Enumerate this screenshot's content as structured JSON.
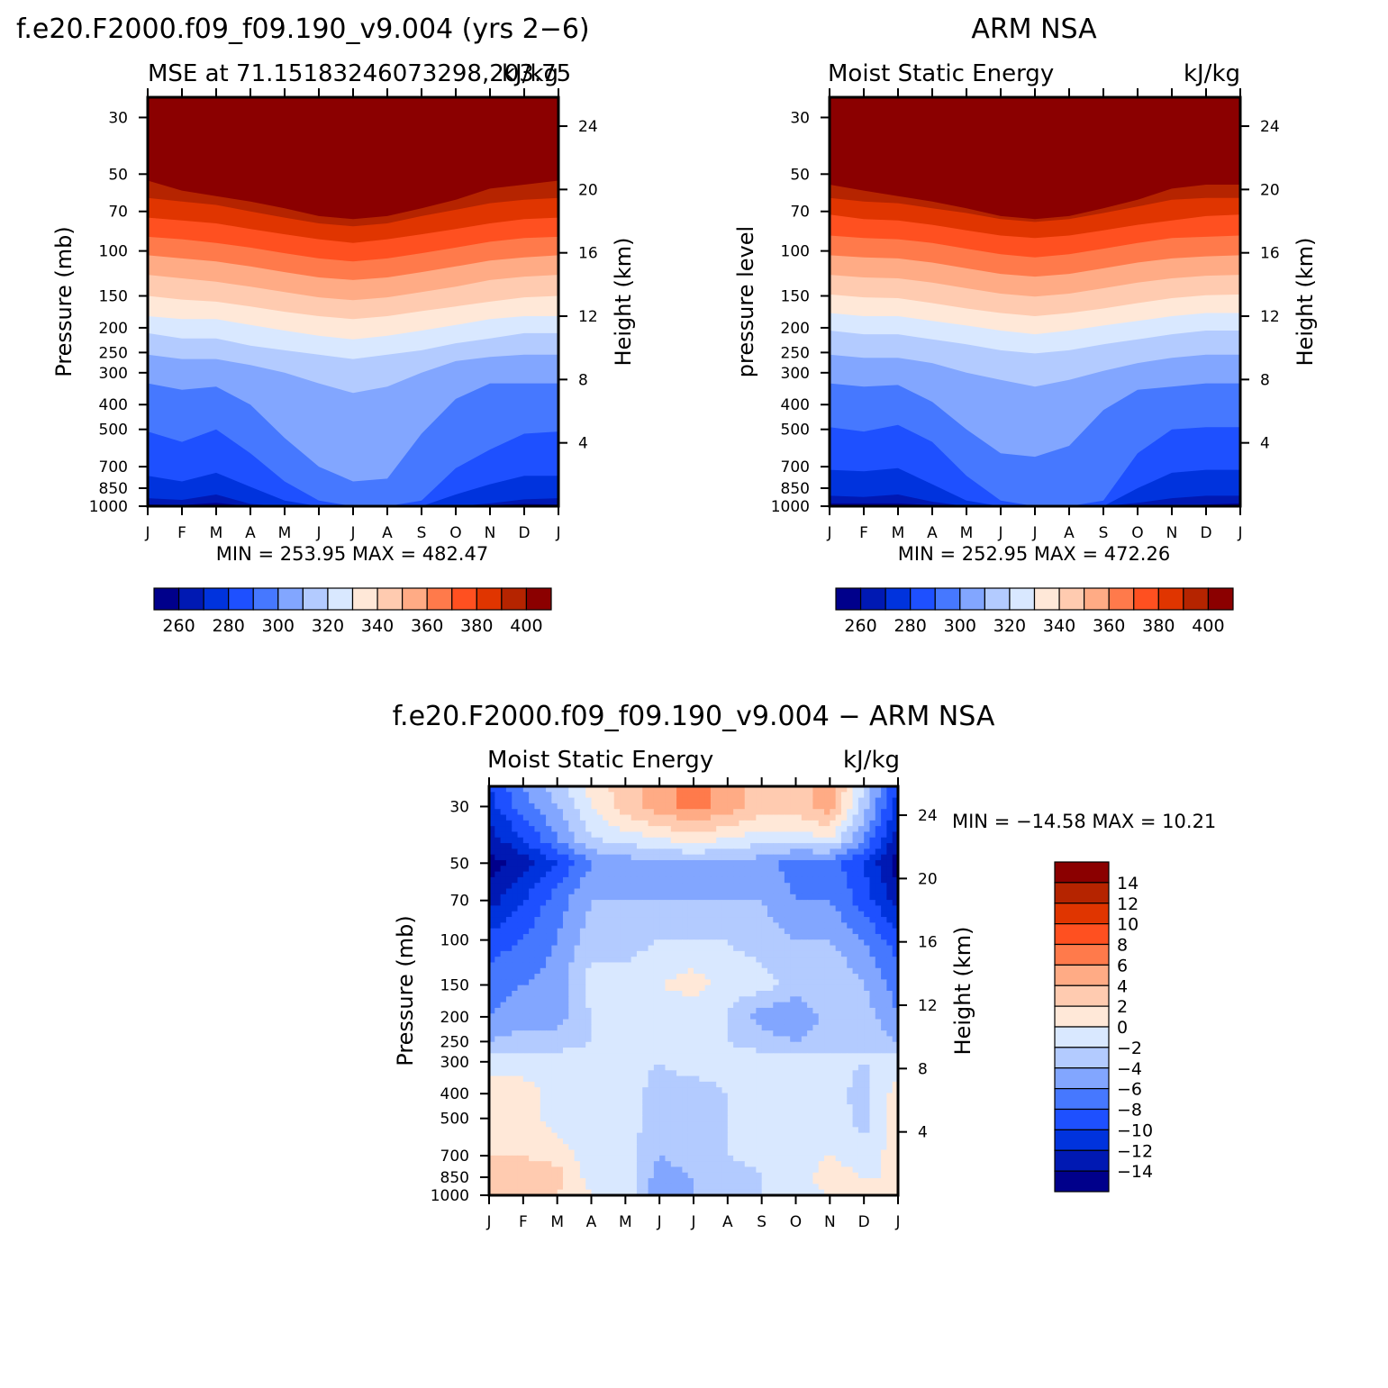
{
  "figure": {
    "panels": [
      {
        "id": "model",
        "suptitle": "f.e20.F2000.f09_f09.190_v9.004 (yrs 2−6)",
        "left_title": "MSE at 71.15183246073298,203.75",
        "right_title": "kJ/kg",
        "ylabel": "Pressure (mb)",
        "ylabel_right": "Height (km)",
        "stats": "MIN = 253.95 MAX = 482.47"
      },
      {
        "id": "obs",
        "suptitle": "ARM NSA",
        "left_title": "Moist Static Energy",
        "right_title": "kJ/kg",
        "ylabel": "pressure level",
        "ylabel_right": "Height (km)",
        "stats": "MIN = 252.95 MAX = 472.26"
      },
      {
        "id": "diff",
        "suptitle": "f.e20.F2000.f09_f09.190_v9.004 − ARM NSA",
        "left_title": "Moist Static Energy",
        "right_title": "kJ/kg",
        "ylabel": "Pressure (mb)",
        "ylabel_right": "Height (km)",
        "stats": "MIN = −14.58 MAX =  10.21"
      }
    ]
  },
  "chart_data": [
    {
      "type": "heatmap",
      "title": "f.e20.F2000.f09_f09.190_v9.004 (yrs 2−6)",
      "subtitle": "MSE at 71.15183246073298,203.75",
      "units": "kJ/kg",
      "xlabel": "",
      "ylabel": "Pressure (mb)",
      "ylabel_right": "Height (km)",
      "x_ticks": [
        "J",
        "F",
        "M",
        "A",
        "M",
        "J",
        "J",
        "A",
        "S",
        "O",
        "N",
        "D",
        "J"
      ],
      "y_ticks": [
        30,
        50,
        70,
        100,
        150,
        200,
        250,
        300,
        400,
        500,
        700,
        850,
        1000
      ],
      "right_ticks": [
        24,
        20,
        16,
        12,
        8,
        4
      ],
      "ylim": [
        1000,
        25
      ],
      "min": 253.95,
      "max": 482.47,
      "levels": [
        250,
        260,
        270,
        280,
        290,
        300,
        310,
        320,
        330,
        340,
        350,
        360,
        370,
        380,
        390,
        400,
        410
      ],
      "colorbar_ticks": [
        260,
        280,
        300,
        320,
        340,
        360,
        380,
        400
      ],
      "contours": [
        {
          "value": 260,
          "p": [
            985,
            990,
            970,
            1000,
            1000,
            1000,
            1000,
            1000,
            1000,
            1000,
            990,
            980,
            985
          ]
        },
        {
          "value": 270,
          "p": [
            930,
            945,
            900,
            980,
            1000,
            1000,
            1000,
            1000,
            1000,
            1000,
            975,
            940,
            930
          ]
        },
        {
          "value": 280,
          "p": [
            760,
            800,
            740,
            840,
            950,
            1000,
            1000,
            1000,
            1000,
            900,
            820,
            760,
            760
          ]
        },
        {
          "value": 290,
          "p": [
            510,
            560,
            500,
            620,
            800,
            950,
            1000,
            1000,
            950,
            710,
            600,
            520,
            510
          ]
        },
        {
          "value": 300,
          "p": [
            330,
            350,
            340,
            400,
            540,
            700,
            800,
            780,
            520,
            380,
            330,
            330,
            330
          ]
        },
        {
          "value": 310,
          "p": [
            255,
            265,
            265,
            280,
            300,
            330,
            360,
            340,
            300,
            270,
            260,
            255,
            255
          ]
        },
        {
          "value": 320,
          "p": [
            210,
            220,
            220,
            235,
            245,
            255,
            265,
            255,
            245,
            230,
            220,
            210,
            210
          ]
        },
        {
          "value": 330,
          "p": [
            180,
            185,
            185,
            195,
            205,
            215,
            222,
            215,
            205,
            195,
            185,
            180,
            180
          ]
        },
        {
          "value": 340,
          "p": [
            150,
            155,
            158,
            165,
            173,
            180,
            185,
            180,
            172,
            165,
            158,
            152,
            150
          ]
        },
        {
          "value": 350,
          "p": [
            124,
            128,
            132,
            138,
            145,
            152,
            156,
            152,
            145,
            138,
            130,
            126,
            124
          ]
        },
        {
          "value": 360,
          "p": [
            104,
            107,
            110,
            115,
            121,
            127,
            130,
            127,
            121,
            115,
            109,
            106,
            104
          ]
        },
        {
          "value": 370,
          "p": [
            88,
            90,
            93,
            97,
            102,
            107,
            110,
            107,
            102,
            97,
            92,
            89,
            88
          ]
        },
        {
          "value": 380,
          "p": [
            74,
            76,
            78,
            82,
            86,
            90,
            93,
            90,
            86,
            82,
            78,
            75,
            74
          ]
        },
        {
          "value": 390,
          "p": [
            62,
            64,
            66,
            70,
            74,
            78,
            80,
            78,
            73,
            69,
            65,
            63,
            62
          ]
        },
        {
          "value": 400,
          "p": [
            53,
            58,
            61,
            64,
            68,
            73,
            75,
            73,
            68,
            63,
            57,
            55,
            53
          ]
        }
      ]
    },
    {
      "type": "heatmap",
      "title": "ARM NSA",
      "subtitle": "Moist Static Energy",
      "units": "kJ/kg",
      "xlabel": "",
      "ylabel": "pressure level",
      "ylabel_right": "Height (km)",
      "x_ticks": [
        "J",
        "F",
        "M",
        "A",
        "M",
        "J",
        "J",
        "A",
        "S",
        "O",
        "N",
        "D",
        "J"
      ],
      "y_ticks": [
        30,
        50,
        70,
        100,
        150,
        200,
        250,
        300,
        400,
        500,
        700,
        850,
        1000
      ],
      "right_ticks": [
        24,
        20,
        16,
        12,
        8,
        4
      ],
      "ylim": [
        1000,
        25
      ],
      "min": 252.95,
      "max": 472.26,
      "levels": [
        250,
        260,
        270,
        280,
        290,
        300,
        310,
        320,
        330,
        340,
        350,
        360,
        370,
        380,
        390,
        400,
        410
      ],
      "colorbar_ticks": [
        260,
        280,
        300,
        320,
        340,
        360,
        380,
        400
      ],
      "contours": [
        {
          "value": 260,
          "p": [
            975,
            975,
            975,
            990,
            1000,
            1000,
            1000,
            1000,
            1000,
            1000,
            1000,
            985,
            975
          ]
        },
        {
          "value": 270,
          "p": [
            910,
            920,
            900,
            960,
            1000,
            1000,
            1000,
            1000,
            1000,
            970,
            930,
            910,
            910
          ]
        },
        {
          "value": 280,
          "p": [
            720,
            730,
            710,
            820,
            950,
            1000,
            1000,
            1000,
            1000,
            850,
            740,
            720,
            720
          ]
        },
        {
          "value": 290,
          "p": [
            490,
            510,
            480,
            560,
            760,
            950,
            1000,
            1000,
            950,
            620,
            500,
            490,
            490
          ]
        },
        {
          "value": 300,
          "p": [
            330,
            340,
            335,
            390,
            500,
            620,
            640,
            580,
            420,
            350,
            340,
            330,
            330
          ]
        },
        {
          "value": 310,
          "p": [
            255,
            262,
            262,
            275,
            300,
            320,
            340,
            320,
            295,
            275,
            262,
            255,
            255
          ]
        },
        {
          "value": 320,
          "p": [
            205,
            212,
            212,
            222,
            232,
            245,
            252,
            245,
            232,
            222,
            212,
            205,
            205
          ]
        },
        {
          "value": 330,
          "p": [
            175,
            180,
            180,
            188,
            196,
            205,
            212,
            205,
            196,
            188,
            180,
            175,
            175
          ]
        },
        {
          "value": 340,
          "p": [
            148,
            152,
            153,
            160,
            168,
            175,
            180,
            175,
            168,
            160,
            153,
            149,
            148
          ]
        },
        {
          "value": 350,
          "p": [
            124,
            127,
            128,
            133,
            140,
            147,
            151,
            147,
            140,
            133,
            128,
            125,
            124
          ]
        },
        {
          "value": 360,
          "p": [
            104,
            106,
            107,
            111,
            117,
            123,
            126,
            123,
            117,
            111,
            107,
            105,
            104
          ]
        },
        {
          "value": 370,
          "p": [
            87,
            89,
            90,
            93,
            98,
            103,
            106,
            103,
            98,
            93,
            89,
            88,
            87
          ]
        },
        {
          "value": 380,
          "p": [
            72,
            75,
            76,
            79,
            83,
            87,
            89,
            87,
            83,
            79,
            76,
            73,
            72
          ]
        },
        {
          "value": 390,
          "p": [
            62,
            64,
            65,
            68,
            71,
            75,
            77,
            75,
            71,
            67,
            63,
            62,
            62
          ]
        },
        {
          "value": 400,
          "p": [
            55,
            58,
            61,
            64,
            68,
            73,
            75,
            73,
            68,
            63,
            57,
            55,
            55
          ]
        }
      ]
    },
    {
      "type": "heatmap",
      "title": "f.e20.F2000.f09_f09.190_v9.004 − ARM NSA",
      "subtitle": "Moist Static Energy",
      "units": "kJ/kg",
      "xlabel": "",
      "ylabel": "Pressure (mb)",
      "ylabel_right": "Height (km)",
      "x_ticks": [
        "J",
        "F",
        "M",
        "A",
        "M",
        "J",
        "J",
        "A",
        "S",
        "O",
        "N",
        "D",
        "J"
      ],
      "y_ticks": [
        30,
        50,
        70,
        100,
        150,
        200,
        250,
        300,
        400,
        500,
        700,
        850,
        1000
      ],
      "right_ticks": [
        24,
        20,
        16,
        12,
        8,
        4
      ],
      "ylim": [
        1000,
        25
      ],
      "min": -14.58,
      "max": 10.21,
      "levels": [
        -16,
        -14,
        -12,
        -10,
        -8,
        -6,
        -4,
        -2,
        0,
        2,
        4,
        6,
        8,
        10,
        12,
        14,
        16
      ],
      "colorbar_ticks": [
        14,
        12,
        10,
        8,
        6,
        4,
        2,
        0,
        -2,
        -4,
        -6,
        -8,
        -10,
        -12,
        -14
      ],
      "grid_months": [
        "J",
        "F",
        "M",
        "A",
        "M",
        "J",
        "J",
        "A",
        "S",
        "O",
        "N",
        "D",
        "J"
      ],
      "grid_pressure": [
        25,
        30,
        40,
        50,
        70,
        100,
        150,
        200,
        250,
        300,
        400,
        500,
        700,
        850,
        1000
      ],
      "values": [
        [
          -10,
          -6,
          -3,
          1,
          3,
          5,
          7,
          5,
          3,
          3,
          5,
          -2,
          -10
        ],
        [
          -11,
          -7,
          -4,
          0,
          3,
          5,
          7,
          5,
          3,
          3,
          5,
          -3,
          -11
        ],
        [
          -13,
          -10,
          -6,
          -2,
          -1,
          0,
          1,
          0,
          -1,
          -1,
          0,
          -6,
          -13
        ],
        [
          -15,
          -13,
          -10,
          -6,
          -5,
          -5,
          -4,
          -5,
          -5,
          -7,
          -7,
          -10,
          -15
        ],
        [
          -13,
          -10,
          -7,
          -4,
          -4,
          -4,
          -4,
          -4,
          -4,
          -6,
          -6,
          -9,
          -13
        ],
        [
          -9,
          -8,
          -6,
          -3,
          -3,
          -2,
          -2,
          -2,
          -3,
          -4,
          -4,
          -6,
          -9
        ],
        [
          -7,
          -6,
          -5,
          -1,
          -1,
          0,
          1,
          -1,
          -1,
          -3,
          -2,
          -4,
          -7
        ],
        [
          -6,
          -5,
          -5,
          -2,
          -2,
          -2,
          -2,
          -2,
          -5,
          -6,
          -3,
          -3,
          -6
        ],
        [
          -4,
          -3,
          -3,
          -2,
          -2,
          -1,
          0,
          -2,
          -3,
          -4,
          -3,
          -2,
          -4
        ],
        [
          -1,
          -1,
          -1,
          -1,
          -1,
          -2,
          -1,
          -1,
          -1,
          -1,
          -1,
          -2,
          -1
        ],
        [
          1,
          1,
          -1,
          -1,
          -1,
          -3,
          -3,
          -2,
          -1,
          -1,
          -1,
          -3,
          1
        ],
        [
          1,
          1,
          -1,
          -1,
          -1,
          -3,
          -3,
          -2,
          -1,
          -1,
          0,
          -3,
          1
        ],
        [
          2,
          2,
          1,
          -1,
          -1,
          -4,
          -3,
          -2,
          -1,
          -1,
          0,
          -1,
          1
        ],
        [
          2,
          4,
          3,
          -1,
          -1,
          -5,
          -4,
          -4,
          -2,
          -1,
          1,
          0,
          0
        ],
        [
          2,
          4,
          2,
          0,
          0,
          -6,
          -4,
          -4,
          -2,
          -1,
          0,
          0,
          0
        ]
      ]
    }
  ]
}
